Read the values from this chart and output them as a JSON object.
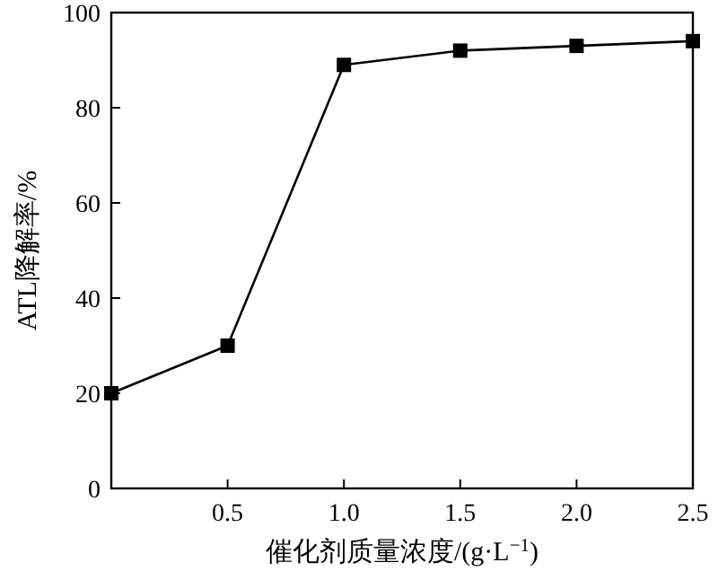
{
  "chart_data": {
    "type": "line",
    "xlabel": "催化剂质量浓度/(g·L$^{−1}$)",
    "ylabel": "ATL降解率/%",
    "x": [
      0,
      0.5,
      1.0,
      1.5,
      2.0,
      2.5
    ],
    "series": [
      {
        "color": "#000000",
        "values": [
          20,
          30,
          89,
          92,
          93,
          94
        ]
      }
    ],
    "xlim": [
      0,
      2.5
    ],
    "ylim": [
      0,
      100
    ],
    "xticks": [
      {
        "value": 0.5,
        "label": "0.5"
      },
      {
        "value": 1.0,
        "label": "1.0"
      },
      {
        "value": 1.5,
        "label": "1.5"
      },
      {
        "value": 2.0,
        "label": "2.0"
      },
      {
        "value": 2.5,
        "label": "2.5"
      }
    ],
    "yticks": [
      0,
      20,
      40,
      60,
      80,
      100
    ],
    "marker": "square",
    "line_style": "solid"
  }
}
